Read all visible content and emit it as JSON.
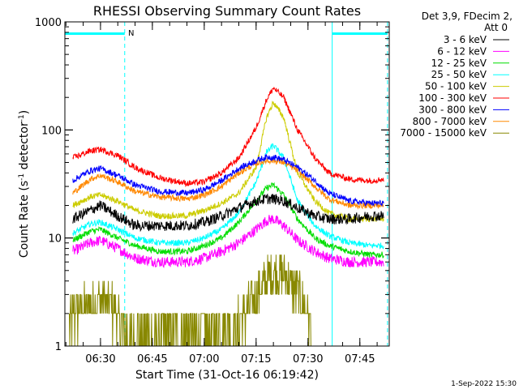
{
  "chart_data": {
    "type": "line",
    "title": "RHESSI Observing Summary Count Rates",
    "xlabel": "Start Time (31-Oct-16 06:19:42)",
    "ylabel": "Count Rate (s⁻¹ detector⁻¹)",
    "ylabel_parts": {
      "main": "Count Rate (s",
      "sup1": "-1",
      "mid": " detector",
      "sup2": "-1",
      "end": ")"
    },
    "y_scale": "log",
    "ylim": [
      1,
      1000
    ],
    "xlim": [
      "06:19:42",
      "07:53:30"
    ],
    "x_tick_labels": [
      "06:30",
      "06:45",
      "07:00",
      "07:15",
      "07:30",
      "07:45"
    ],
    "y_tick_labels": [
      "1",
      "10",
      "100",
      "1000"
    ],
    "legend": {
      "placement": "right",
      "header": [
        "Det 3,9, FDecim 2,",
        "Att 0"
      ],
      "entries": [
        {
          "label": "3 - 6 keV",
          "color": "#000000"
        },
        {
          "label": "6 - 12 keV",
          "color": "#ff00ff"
        },
        {
          "label": "12 - 25 keV",
          "color": "#00dd00"
        },
        {
          "label": "25 - 50 keV",
          "color": "#00ffff"
        },
        {
          "label": "50 - 100 keV",
          "color": "#cccc00"
        },
        {
          "label": "100 - 300 keV",
          "color": "#ff0000"
        },
        {
          "label": "300 - 800 keV",
          "color": "#0000ff"
        },
        {
          "label": "800 - 7000 keV",
          "color": "#ff8800"
        },
        {
          "label": "7000 - 15000 keV",
          "color": "#888800"
        }
      ]
    },
    "annotation": "N",
    "night_intervals": [
      [
        "06:19:42",
        "06:37:00"
      ],
      [
        "07:37:00",
        "07:53:00"
      ]
    ],
    "series": [
      {
        "name": "3 - 6 keV",
        "color": "#000000",
        "x": [
          "06:22",
          "06:27",
          "06:30",
          "06:35",
          "06:40",
          "06:47",
          "06:55",
          "07:00",
          "07:05",
          "07:10",
          "07:15",
          "07:18",
          "07:20",
          "07:23",
          "07:27",
          "07:32",
          "07:36",
          "07:42",
          "07:48",
          "07:52"
        ],
        "y": [
          15,
          18,
          20,
          16,
          13,
          13,
          13,
          14,
          16,
          19,
          22,
          23,
          23,
          22,
          19,
          16,
          15,
          15,
          16,
          16
        ]
      },
      {
        "name": "6 - 12 keV",
        "color": "#ff00ff",
        "x": [
          "06:22",
          "06:27",
          "06:30",
          "06:35",
          "06:40",
          "06:47",
          "06:55",
          "07:00",
          "07:05",
          "07:10",
          "07:15",
          "07:18",
          "07:20",
          "07:23",
          "07:27",
          "07:32",
          "07:36",
          "07:42",
          "07:48",
          "07:52"
        ],
        "y": [
          7.5,
          9,
          9.5,
          8,
          6.5,
          6,
          6,
          6.5,
          7.5,
          9,
          12,
          14.5,
          15,
          13,
          9.5,
          7.5,
          6.5,
          6,
          6,
          6
        ]
      },
      {
        "name": "12 - 25 keV",
        "color": "#00dd00",
        "x": [
          "06:22",
          "06:27",
          "06:30",
          "06:35",
          "06:40",
          "06:47",
          "06:55",
          "07:00",
          "07:05",
          "07:10",
          "07:15",
          "07:18",
          "07:20",
          "07:23",
          "07:27",
          "07:32",
          "07:36",
          "07:42",
          "07:48",
          "07:52"
        ],
        "y": [
          9.5,
          11.5,
          12,
          10,
          8.5,
          7.5,
          7.5,
          8.5,
          10,
          14,
          22,
          29,
          31,
          25,
          15,
          10,
          8.5,
          7.5,
          7,
          7
        ]
      },
      {
        "name": "25 - 50 keV",
        "color": "#00ffff",
        "x": [
          "06:22",
          "06:27",
          "06:30",
          "06:35",
          "06:40",
          "06:47",
          "06:55",
          "07:00",
          "07:05",
          "07:10",
          "07:15",
          "07:18",
          "07:20",
          "07:23",
          "07:27",
          "07:32",
          "07:36",
          "07:42",
          "07:48",
          "07:52"
        ],
        "y": [
          11,
          13.5,
          14,
          12,
          10,
          9,
          9,
          10,
          12,
          17,
          33,
          62,
          72,
          55,
          22,
          13,
          10.5,
          9,
          8.5,
          8.5
        ]
      },
      {
        "name": "50 - 100 keV",
        "color": "#cccc00",
        "x": [
          "06:22",
          "06:27",
          "06:30",
          "06:35",
          "06:40",
          "06:47",
          "06:55",
          "07:00",
          "07:05",
          "07:10",
          "07:15",
          "07:18",
          "07:20",
          "07:23",
          "07:27",
          "07:32",
          "07:36",
          "07:42",
          "07:48",
          "07:52"
        ],
        "y": [
          20,
          24,
          25,
          22,
          18,
          16,
          16,
          18,
          21,
          26,
          45,
          130,
          180,
          130,
          40,
          22,
          17,
          15,
          15,
          15
        ]
      },
      {
        "name": "100 - 300 keV",
        "color": "#ff0000",
        "x": [
          "06:22",
          "06:27",
          "06:30",
          "06:35",
          "06:40",
          "06:47",
          "06:55",
          "07:00",
          "07:05",
          "07:10",
          "07:15",
          "07:18",
          "07:20",
          "07:23",
          "07:27",
          "07:32",
          "07:36",
          "07:42",
          "07:48",
          "07:52"
        ],
        "y": [
          55,
          64,
          66,
          58,
          45,
          36,
          32,
          33,
          40,
          55,
          105,
          190,
          245,
          200,
          100,
          55,
          40,
          35,
          34,
          35
        ]
      },
      {
        "name": "300 - 800 keV",
        "color": "#0000ff",
        "x": [
          "06:22",
          "06:27",
          "06:30",
          "06:35",
          "06:40",
          "06:47",
          "06:55",
          "07:00",
          "07:05",
          "07:10",
          "07:15",
          "07:18",
          "07:20",
          "07:23",
          "07:27",
          "07:32",
          "07:36",
          "07:42",
          "07:48",
          "07:52"
        ],
        "y": [
          34,
          42,
          44,
          38,
          31,
          27,
          26,
          28,
          34,
          44,
          52,
          56,
          56,
          53,
          45,
          34,
          26,
          22,
          21,
          21
        ]
      },
      {
        "name": "800 - 7000 keV",
        "color": "#ff8800",
        "x": [
          "06:22",
          "06:27",
          "06:30",
          "06:35",
          "06:40",
          "06:47",
          "06:55",
          "07:00",
          "07:05",
          "07:10",
          "07:15",
          "07:18",
          "07:20",
          "07:23",
          "07:27",
          "07:32",
          "07:36",
          "07:42",
          "07:48",
          "07:52"
        ],
        "y": [
          26,
          35,
          38,
          33,
          27,
          24,
          23,
          25,
          30,
          40,
          49,
          52,
          52,
          50,
          42,
          30,
          23,
          20,
          20,
          20
        ]
      },
      {
        "name": "7000 - 15000 keV",
        "color": "#888800",
        "x": [
          "06:21",
          "06:25",
          "06:30",
          "06:33",
          "06:35",
          "06:38",
          "07:10",
          "07:15",
          "07:20",
          "07:24",
          "07:28",
          "07:31"
        ],
        "y": [
          1.8,
          2.3,
          2.6,
          2.4,
          1.8,
          1.2,
          1.6,
          3,
          4.8,
          4.3,
          2.8,
          1.6
        ]
      }
    ]
  },
  "timestamp": "1-Sep-2022 15:30"
}
